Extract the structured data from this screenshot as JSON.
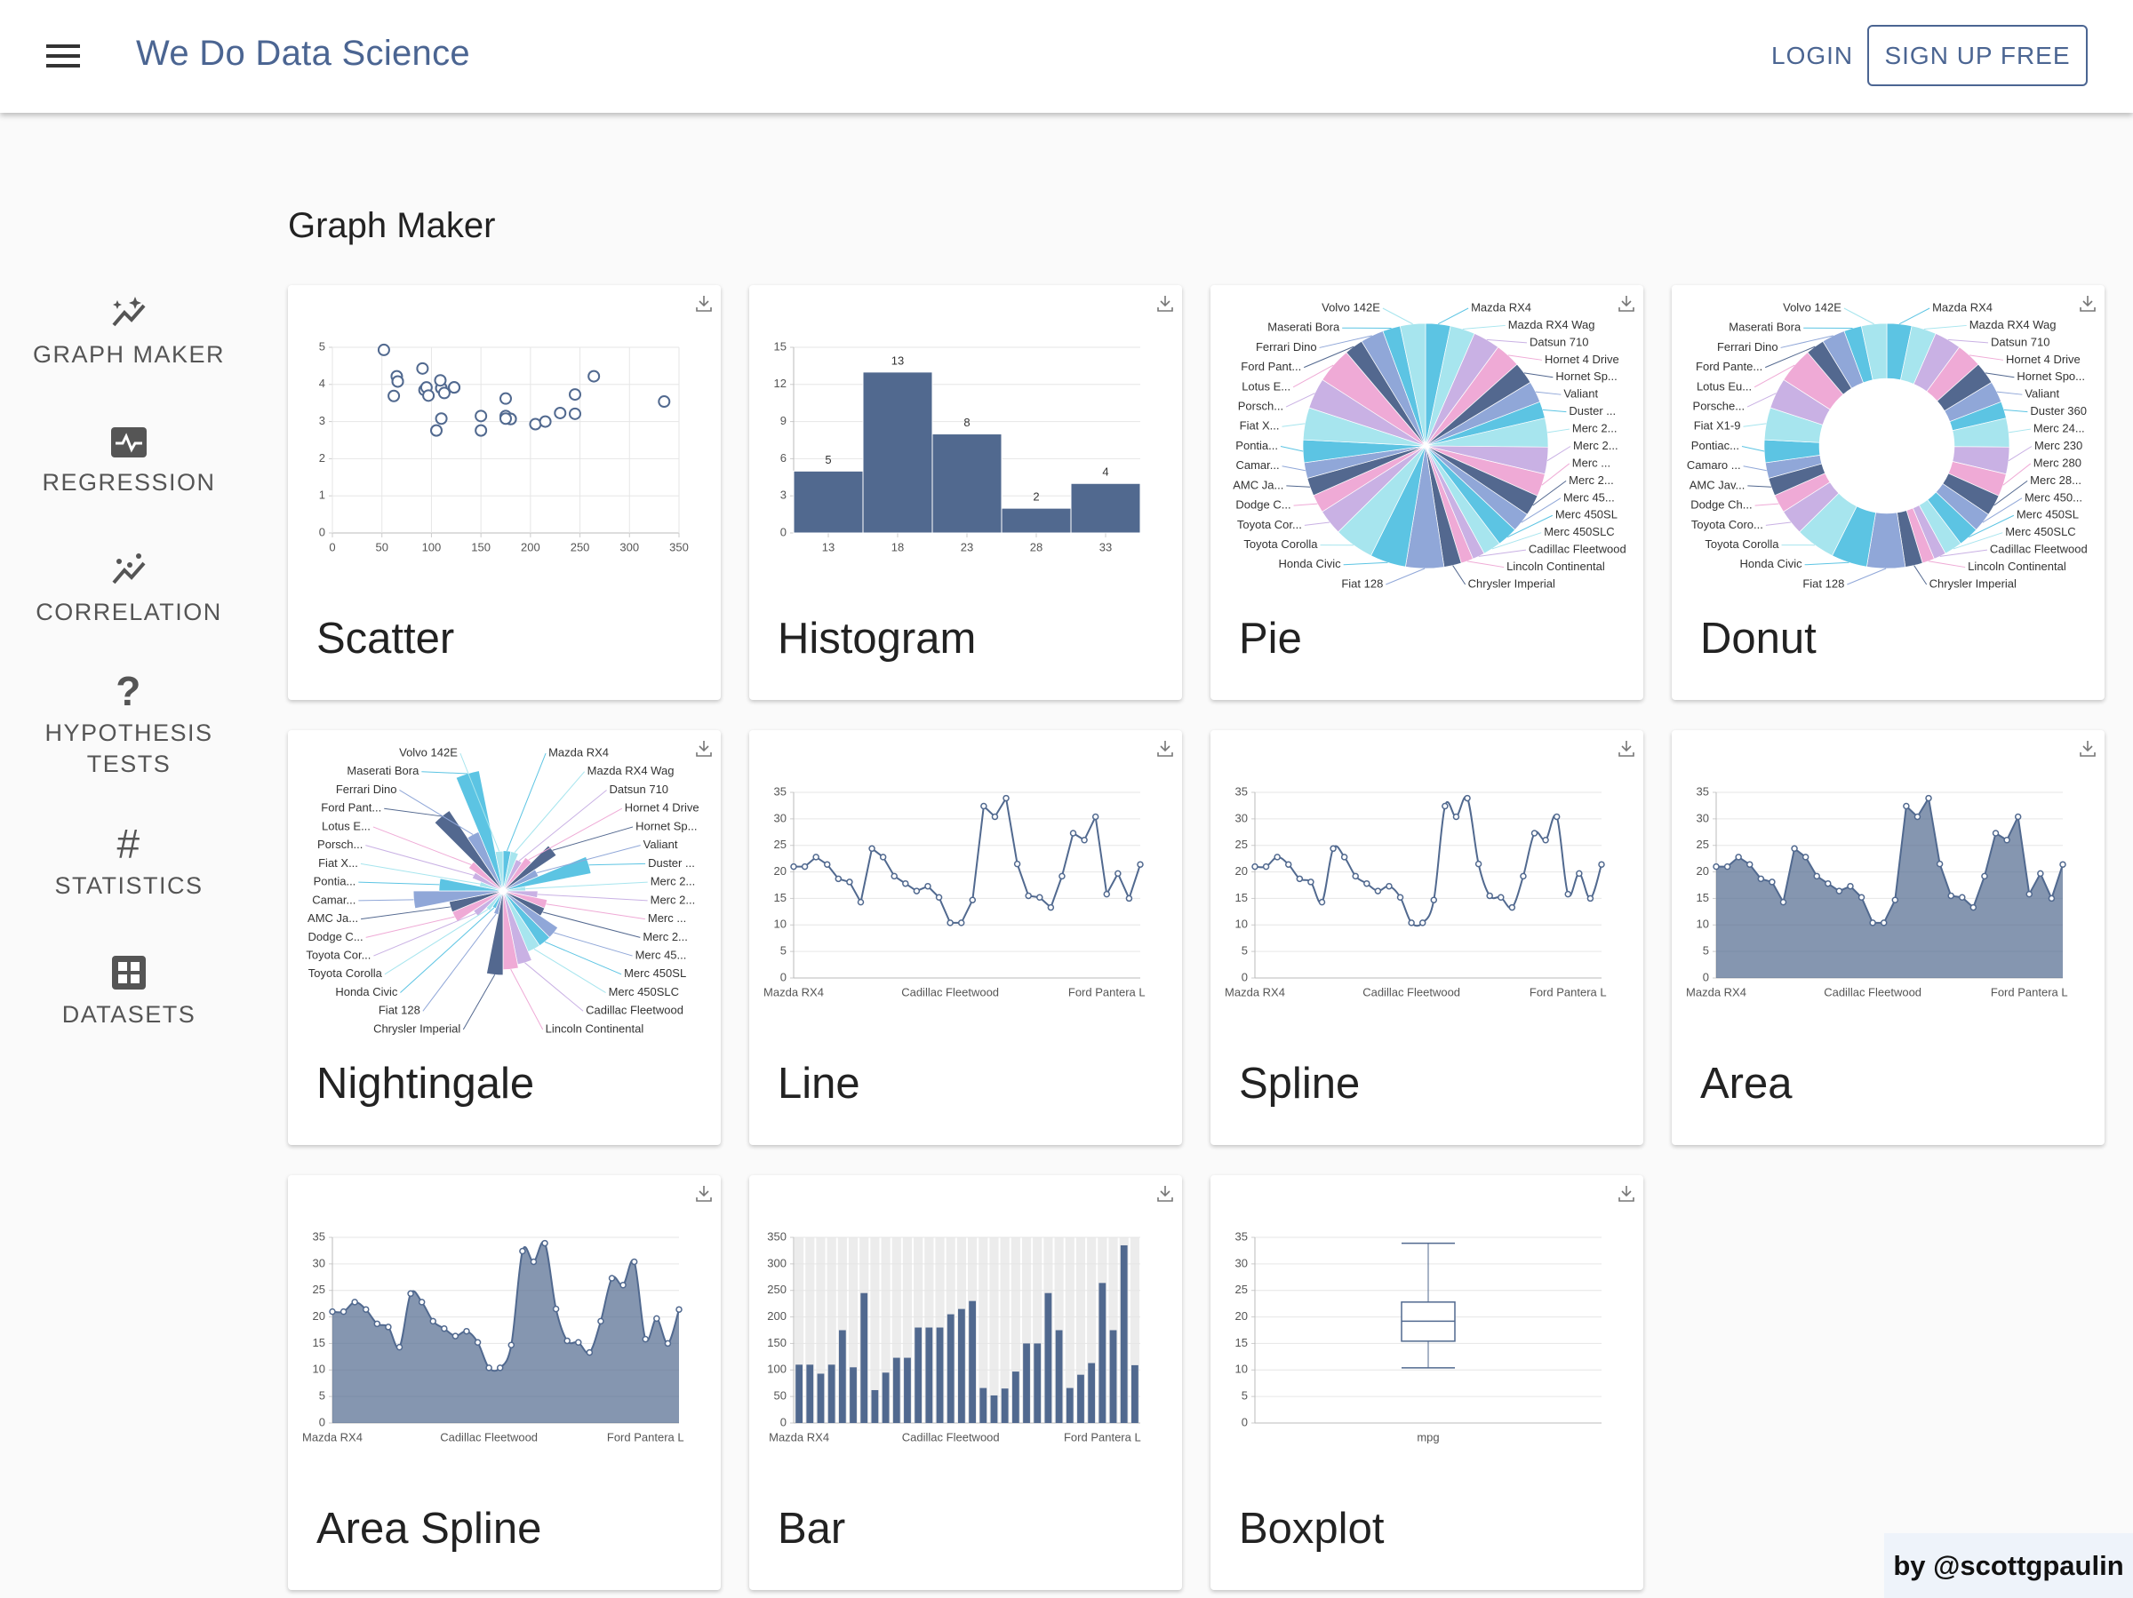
{
  "header": {
    "brand": "We Do Data Science",
    "login": "LOGIN",
    "signup": "SIGN UP FREE"
  },
  "sidebar": {
    "items": [
      "GRAPH MAKER",
      "REGRESSION",
      "CORRELATION",
      "HYPOTHESIS TESTS",
      "STATISTICS",
      "DATASETS"
    ]
  },
  "page_title": "Graph Maker",
  "credit": "by @scottgpaulin",
  "chart_data": [
    {
      "type": "scatter",
      "title": "Scatter",
      "x": [
        110,
        110,
        93,
        110,
        175,
        105,
        245,
        62,
        95,
        123,
        123,
        180,
        180,
        180,
        205,
        215,
        230,
        66,
        52,
        65,
        97,
        150,
        150,
        245,
        175,
        66,
        91,
        113,
        264,
        175,
        335,
        109
      ],
      "values": [
        3.9,
        3.9,
        3.85,
        3.08,
        3.15,
        2.76,
        3.21,
        3.69,
        3.92,
        3.92,
        3.92,
        3.07,
        3.07,
        3.07,
        2.93,
        3,
        3.23,
        4.08,
        4.93,
        4.22,
        3.7,
        2.76,
        3.15,
        3.73,
        3.08,
        4.08,
        4.43,
        3.77,
        4.22,
        3.62,
        3.54,
        4.11
      ],
      "color": "#51698f",
      "xlim": [
        0,
        350
      ],
      "xticks": [
        0,
        50,
        100,
        150,
        200,
        250,
        300,
        350
      ],
      "ylim": [
        0,
        5
      ],
      "yticks": [
        0,
        1,
        2,
        3,
        4,
        5
      ],
      "grid": true
    },
    {
      "type": "histogram",
      "title": "Histogram",
      "bins": [
        10.5,
        15.5,
        20.5,
        25.5,
        30.5,
        35.5
      ],
      "values": [
        5,
        13,
        8,
        2,
        4
      ],
      "color": "#51698f",
      "xlim": [
        10.5,
        35.5
      ],
      "xticks": [
        13,
        18,
        23,
        28,
        33
      ],
      "ylim": [
        0,
        15
      ],
      "yticks": [
        0,
        3,
        6,
        9,
        12,
        15
      ],
      "grid": true
    },
    {
      "type": "pie",
      "title": "Pie",
      "categories": [
        "Mazda RX4",
        "Mazda RX4 Wag",
        "Datsun 710",
        "Hornet 4 Drive",
        "Hornet Sp...",
        "Valiant",
        "Duster ...",
        "Merc 2...",
        "Merc 2...",
        "Merc ...",
        "Merc 2...",
        "Merc 45...",
        "Merc 450SL",
        "Merc 450SLC",
        "Cadillac Fleetwood",
        "Lincoln Continental",
        "Chrysler Imperial",
        "Fiat 128",
        "Honda Civic",
        "Toyota Corolla",
        "Toyota Cor...",
        "Dodge C...",
        "AMC Ja...",
        "Camar...",
        "Pontia...",
        "Fiat X...",
        "Porsch...",
        "Lotus E...",
        "Ford Pant...",
        "Ferrari Dino",
        "Maserati Bora",
        "Volvo 142E"
      ],
      "values": [
        21,
        21,
        22.8,
        21.4,
        18.7,
        18.1,
        14.3,
        24.4,
        22.8,
        19.2,
        17.8,
        16.4,
        17.3,
        15.2,
        10.4,
        10.4,
        14.7,
        32.4,
        30.4,
        33.9,
        21.5,
        15.5,
        15.2,
        13.3,
        19.2,
        27.3,
        26,
        30.4,
        15.8,
        19.7,
        15,
        21.4
      ],
      "colors": [
        "#5cc4e3",
        "#a7e5ee",
        "#c9b1e4",
        "#efaad6",
        "#53688f",
        "#90a7d8"
      ]
    },
    {
      "type": "donut",
      "title": "Donut",
      "categories": [
        "Mazda RX4",
        "Mazda RX4 Wag",
        "Datsun 710",
        "Hornet 4 Drive",
        "Hornet Spo...",
        "Valiant",
        "Duster 360",
        "Merc 24...",
        "Merc 230",
        "Merc 280",
        "Merc 28...",
        "Merc 450...",
        "Merc 450SL",
        "Merc 450SLC",
        "Cadillac Fleetwood",
        "Lincoln Continental",
        "Chrysler Imperial",
        "Fiat 128",
        "Honda Civic",
        "Toyota Corolla",
        "Toyota Coro...",
        "Dodge Ch...",
        "AMC Jav...",
        "Camaro ...",
        "Pontiac...",
        "Fiat X1-9",
        "Porsche...",
        "Lotus Eu...",
        "Ford Pante...",
        "Ferrari Dino",
        "Maserati Bora",
        "Volvo 142E"
      ],
      "values": [
        21,
        21,
        22.8,
        21.4,
        18.7,
        18.1,
        14.3,
        24.4,
        22.8,
        19.2,
        17.8,
        16.4,
        17.3,
        15.2,
        10.4,
        10.4,
        14.7,
        32.4,
        30.4,
        33.9,
        21.5,
        15.5,
        15.2,
        13.3,
        19.2,
        27.3,
        26,
        30.4,
        15.8,
        19.7,
        15,
        21.4
      ],
      "colors": [
        "#5cc4e3",
        "#a7e5ee",
        "#c9b1e4",
        "#efaad6",
        "#53688f",
        "#90a7d8"
      ]
    },
    {
      "type": "nightingale",
      "title": "Nightingale",
      "categories": [
        "Mazda RX4",
        "Mazda RX4 Wag",
        "Datsun 710",
        "Hornet 4 Drive",
        "Hornet Sp...",
        "Valiant",
        "Duster ...",
        "Merc 2...",
        "Merc 2...",
        "Merc ...",
        "Merc 2...",
        "Merc 45...",
        "Merc 450SL",
        "Merc 450SLC",
        "Cadillac Fleetwood",
        "Lincoln Continental",
        "Chrysler Imperial",
        "Fiat 128",
        "Honda Civic",
        "Toyota Corolla",
        "Toyota Cor...",
        "Dodge C...",
        "AMC Ja...",
        "Camar...",
        "Pontia...",
        "Fiat X...",
        "Porsch...",
        "Lotus E...",
        "Ford Pant...",
        "Ferrari Dino",
        "Maserati Bora",
        "Volvo 142E"
      ],
      "values": [
        110,
        110,
        93,
        110,
        175,
        105,
        245,
        62,
        95,
        123,
        123,
        180,
        180,
        180,
        205,
        215,
        230,
        66,
        52,
        65,
        97,
        150,
        150,
        245,
        175,
        66,
        91,
        113,
        264,
        175,
        335,
        109
      ],
      "colors": [
        "#5cc4e3",
        "#a7e5ee",
        "#c9b1e4",
        "#efaad6",
        "#53688f",
        "#90a7d8"
      ]
    },
    {
      "type": "line",
      "title": "Line",
      "categories": [
        "Mazda RX4",
        null,
        null,
        null,
        null,
        null,
        null,
        null,
        null,
        null,
        null,
        null,
        null,
        null,
        "Cadillac Fleetwood",
        null,
        null,
        null,
        null,
        null,
        null,
        null,
        null,
        null,
        null,
        null,
        null,
        null,
        "Ford Pantera L",
        null,
        null,
        null
      ],
      "values": [
        21,
        21,
        22.8,
        21.4,
        18.7,
        18.1,
        14.3,
        24.4,
        22.8,
        19.2,
        17.8,
        16.4,
        17.3,
        15.2,
        10.4,
        10.4,
        14.7,
        32.4,
        30.4,
        33.9,
        21.5,
        15.5,
        15.2,
        13.3,
        19.2,
        27.3,
        26,
        30.4,
        15.8,
        19.7,
        15,
        21.4
      ],
      "color": "#51698f",
      "ylim": [
        0,
        35
      ],
      "yticks": [
        0,
        5,
        10,
        15,
        20,
        25,
        30,
        35
      ],
      "grid": true
    },
    {
      "type": "spline",
      "title": "Spline",
      "categories": [
        "Mazda RX4",
        null,
        null,
        null,
        null,
        null,
        null,
        null,
        null,
        null,
        null,
        null,
        null,
        null,
        "Cadillac Fleetwood",
        null,
        null,
        null,
        null,
        null,
        null,
        null,
        null,
        null,
        null,
        null,
        null,
        null,
        "Ford Pantera L",
        null,
        null,
        null
      ],
      "values": [
        21,
        21,
        22.8,
        21.4,
        18.7,
        18.1,
        14.3,
        24.4,
        22.8,
        19.2,
        17.8,
        16.4,
        17.3,
        15.2,
        10.4,
        10.4,
        14.7,
        32.4,
        30.4,
        33.9,
        21.5,
        15.5,
        15.2,
        13.3,
        19.2,
        27.3,
        26,
        30.4,
        15.8,
        19.7,
        15,
        21.4
      ],
      "color": "#51698f",
      "ylim": [
        0,
        35
      ],
      "yticks": [
        0,
        5,
        10,
        15,
        20,
        25,
        30,
        35
      ],
      "grid": true
    },
    {
      "type": "area",
      "title": "Area",
      "categories": [
        "Mazda RX4",
        null,
        null,
        null,
        null,
        null,
        null,
        null,
        null,
        null,
        null,
        null,
        null,
        null,
        "Cadillac Fleetwood",
        null,
        null,
        null,
        null,
        null,
        null,
        null,
        null,
        null,
        null,
        null,
        null,
        null,
        "Ford Pantera L",
        null,
        null,
        null
      ],
      "values": [
        21,
        21,
        22.8,
        21.4,
        18.7,
        18.1,
        14.3,
        24.4,
        22.8,
        19.2,
        17.8,
        16.4,
        17.3,
        15.2,
        10.4,
        10.4,
        14.7,
        32.4,
        30.4,
        33.9,
        21.5,
        15.5,
        15.2,
        13.3,
        19.2,
        27.3,
        26,
        30.4,
        15.8,
        19.7,
        15,
        21.4
      ],
      "color": "#51698f",
      "ylim": [
        0,
        35
      ],
      "yticks": [
        0,
        5,
        10,
        15,
        20,
        25,
        30,
        35
      ],
      "grid": true
    },
    {
      "type": "areaspline",
      "title": "Area Spline",
      "categories": [
        "Mazda RX4",
        null,
        null,
        null,
        null,
        null,
        null,
        null,
        null,
        null,
        null,
        null,
        null,
        null,
        "Cadillac Fleetwood",
        null,
        null,
        null,
        null,
        null,
        null,
        null,
        null,
        null,
        null,
        null,
        null,
        null,
        "Ford Pantera L",
        null,
        null,
        null
      ],
      "values": [
        21,
        21,
        22.8,
        21.4,
        18.7,
        18.1,
        14.3,
        24.4,
        22.8,
        19.2,
        17.8,
        16.4,
        17.3,
        15.2,
        10.4,
        10.4,
        14.7,
        32.4,
        30.4,
        33.9,
        21.5,
        15.5,
        15.2,
        13.3,
        19.2,
        27.3,
        26,
        30.4,
        15.8,
        19.7,
        15,
        21.4
      ],
      "color": "#51698f",
      "ylim": [
        0,
        35
      ],
      "yticks": [
        0,
        5,
        10,
        15,
        20,
        25,
        30,
        35
      ],
      "grid": true
    },
    {
      "type": "bar",
      "title": "Bar",
      "categories": [
        "Mazda RX4",
        null,
        null,
        null,
        null,
        null,
        null,
        null,
        null,
        null,
        null,
        null,
        null,
        null,
        "Cadillac Fleetwood",
        null,
        null,
        null,
        null,
        null,
        null,
        null,
        null,
        null,
        null,
        null,
        null,
        null,
        "Ford Pantera L",
        null,
        null,
        null
      ],
      "values": [
        110,
        110,
        93,
        110,
        175,
        105,
        245,
        62,
        95,
        123,
        123,
        180,
        180,
        180,
        205,
        215,
        230,
        66,
        52,
        65,
        97,
        150,
        150,
        245,
        175,
        66,
        91,
        113,
        264,
        175,
        335,
        109
      ],
      "color": "#51698f",
      "ylim": [
        0,
        350
      ],
      "yticks": [
        0,
        50,
        100,
        150,
        200,
        250,
        300,
        350
      ],
      "grid": true
    },
    {
      "type": "boxplot",
      "title": "Boxplot",
      "categories": [
        "mpg"
      ],
      "stats": {
        "min": 10.4,
        "q1": 15.43,
        "median": 19.2,
        "q3": 22.8,
        "max": 33.9
      },
      "color": "#51698f",
      "ylim": [
        0,
        35
      ],
      "yticks": [
        0,
        5,
        10,
        15,
        20,
        25,
        30,
        35
      ],
      "grid": true
    }
  ]
}
